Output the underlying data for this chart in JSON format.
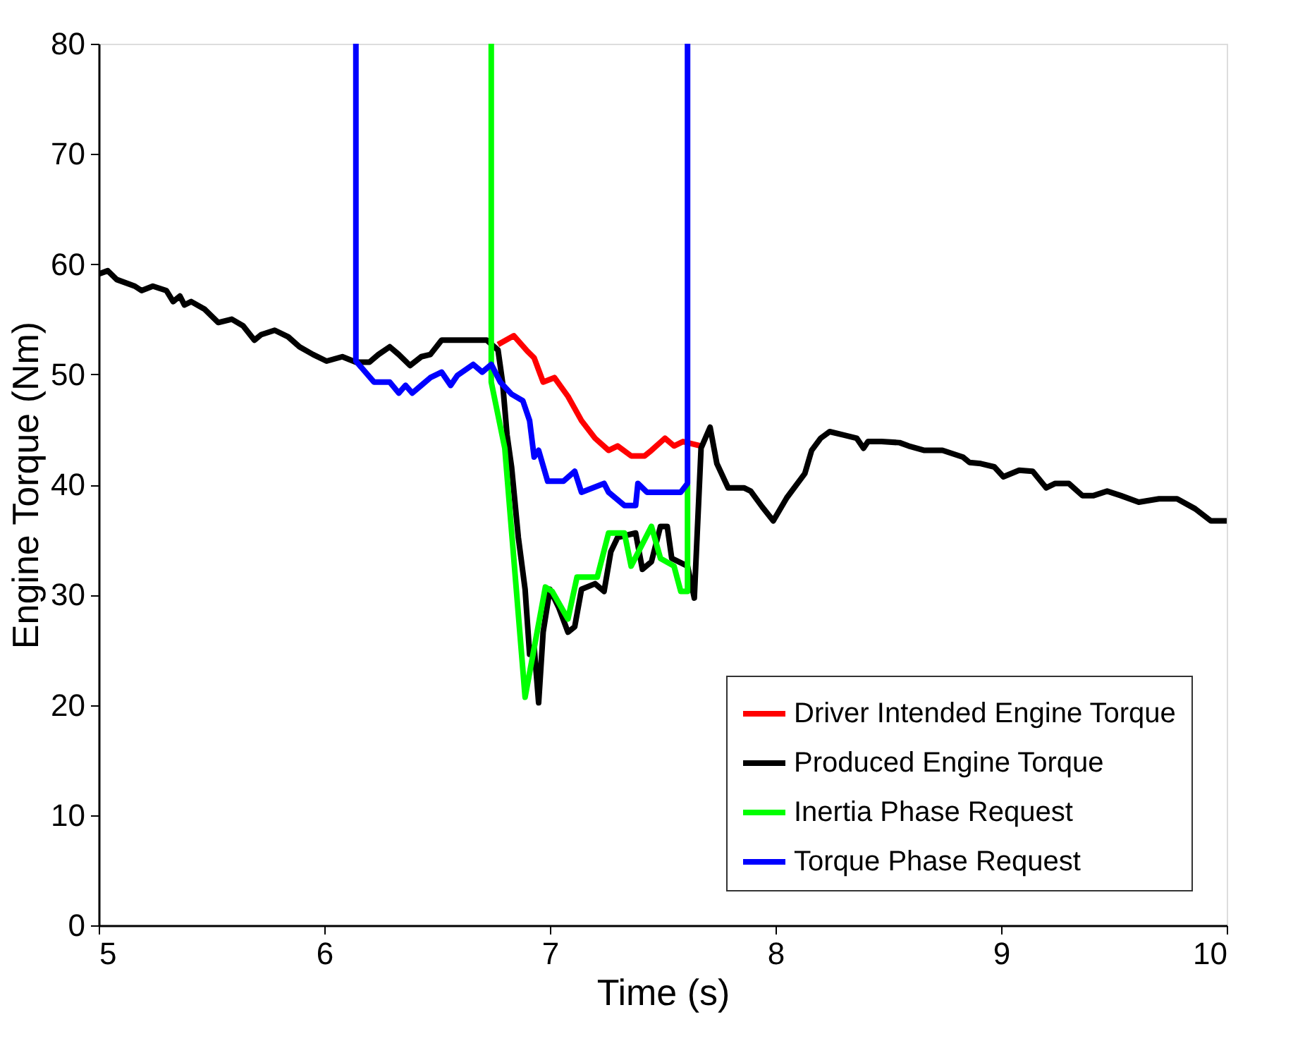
{
  "chart_data": {
    "type": "line",
    "xlabel": "Time (s)",
    "ylabel": "Engine Torque (Nm)",
    "xlim": [
      5,
      10
    ],
    "xticks": [
      5,
      6,
      7,
      8,
      9,
      10
    ],
    "ylim": [
      0,
      80
    ],
    "yticks": [
      0,
      10,
      20,
      30,
      40,
      50,
      60,
      70,
      80
    ],
    "grid": false,
    "legend": "bottom right",
    "line_style": "solid",
    "marker": "none",
    "series": [
      {
        "name": "Driver Intended Engine Torque",
        "color": "#ff0000",
        "x": [
          6.77,
          6.84,
          6.9,
          6.93,
          6.97,
          7.02,
          7.08,
          7.14,
          7.2,
          7.26,
          7.3,
          7.36,
          7.42,
          7.45,
          7.51,
          7.55,
          7.59,
          7.67
        ],
        "values": [
          52.7,
          53.5,
          52.1,
          51.5,
          49.3,
          49.7,
          48.0,
          45.8,
          44.2,
          43.1,
          43.5,
          42.6,
          42.6,
          43.1,
          44.2,
          43.5,
          43.9,
          43.5
        ]
      },
      {
        "name": "Produced Engine Torque",
        "color": "#000000",
        "x": [
          5.0,
          5.04,
          5.08,
          5.16,
          5.19,
          5.24,
          5.3,
          5.33,
          5.36,
          5.38,
          5.41,
          5.47,
          5.53,
          5.59,
          5.64,
          5.69,
          5.72,
          5.78,
          5.84,
          5.89,
          5.95,
          6.01,
          6.08,
          6.14,
          6.2,
          6.24,
          6.29,
          6.33,
          6.38,
          6.43,
          6.47,
          6.52,
          6.64,
          6.72,
          6.77,
          6.79,
          6.81,
          6.83,
          6.86,
          6.89,
          6.91,
          6.93,
          6.95,
          6.97,
          7.0,
          7.04,
          7.08,
          7.11,
          7.14,
          7.2,
          7.24,
          7.27,
          7.3,
          7.38,
          7.41,
          7.45,
          7.49,
          7.52,
          7.54,
          7.61,
          7.64,
          7.67,
          7.71,
          7.74,
          7.79,
          7.86,
          7.89,
          7.94,
          7.99,
          8.05,
          8.13,
          8.16,
          8.2,
          8.24,
          8.3,
          8.36,
          8.39,
          8.41,
          8.47,
          8.55,
          8.59,
          8.66,
          8.74,
          8.83,
          8.86,
          8.91,
          8.97,
          9.01,
          9.08,
          9.14,
          9.2,
          9.24,
          9.3,
          9.36,
          9.41,
          9.47,
          9.53,
          9.61,
          9.7,
          9.78,
          9.86,
          9.93,
          10.0
        ],
        "values": [
          59.1,
          59.4,
          58.6,
          58.0,
          57.6,
          58.0,
          57.6,
          56.6,
          57.1,
          56.3,
          56.6,
          55.9,
          54.7,
          55.0,
          54.4,
          53.1,
          53.6,
          54.0,
          53.4,
          52.5,
          51.8,
          51.2,
          51.6,
          51.1,
          51.1,
          51.8,
          52.5,
          51.8,
          50.8,
          51.6,
          51.8,
          53.1,
          53.1,
          53.1,
          52.2,
          49.3,
          44.5,
          41.6,
          35.2,
          30.5,
          24.6,
          25.3,
          20.2,
          26.6,
          30.5,
          28.8,
          26.6,
          27.1,
          30.5,
          31.0,
          30.3,
          33.9,
          35.2,
          35.6,
          32.3,
          33.0,
          36.2,
          36.2,
          33.3,
          32.6,
          29.7,
          43.3,
          45.2,
          41.9,
          39.7,
          39.7,
          39.4,
          38.0,
          36.7,
          38.8,
          41.0,
          43.1,
          44.2,
          44.8,
          44.5,
          44.2,
          43.3,
          43.9,
          43.9,
          43.8,
          43.5,
          43.1,
          43.1,
          42.5,
          42.0,
          41.9,
          41.6,
          40.7,
          41.3,
          41.2,
          39.7,
          40.1,
          40.1,
          39.0,
          39.0,
          39.4,
          39.0,
          38.4,
          38.7,
          38.7,
          37.8,
          36.7,
          36.7
        ]
      },
      {
        "name": "Inertia Phase Request",
        "color": "#00ff00",
        "x": [
          6.74,
          6.74,
          6.8,
          6.89,
          6.98,
          7.01,
          7.08,
          7.12,
          7.21,
          7.26,
          7.33,
          7.36,
          7.45,
          7.49,
          7.55,
          7.58,
          7.61,
          7.61
        ],
        "values": [
          80,
          49.3,
          43.3,
          20.7,
          30.7,
          30.3,
          27.8,
          31.6,
          31.6,
          35.6,
          35.6,
          32.6,
          36.2,
          33.3,
          32.6,
          30.3,
          30.3,
          40.0
        ]
      },
      {
        "name": "Torque Phase Request",
        "color": "#0000ff",
        "x": [
          6.14,
          6.14,
          6.22,
          6.29,
          6.33,
          6.36,
          6.39,
          6.43,
          6.47,
          6.52,
          6.56,
          6.59,
          6.66,
          6.7,
          6.74,
          6.78,
          6.83,
          6.88,
          6.91,
          6.93,
          6.95,
          6.99,
          7.06,
          7.11,
          7.14,
          7.24,
          7.26,
          7.33,
          7.38,
          7.39,
          7.43,
          7.58,
          7.61,
          7.61
        ],
        "values": [
          80,
          51.2,
          49.3,
          49.3,
          48.3,
          49.0,
          48.3,
          49.0,
          49.7,
          50.2,
          49.0,
          49.9,
          50.9,
          50.2,
          50.9,
          49.3,
          48.2,
          47.6,
          45.8,
          42.5,
          43.1,
          40.3,
          40.3,
          41.2,
          39.3,
          40.1,
          39.3,
          38.1,
          38.1,
          40.1,
          39.3,
          39.3,
          40.1,
          80
        ]
      }
    ]
  }
}
